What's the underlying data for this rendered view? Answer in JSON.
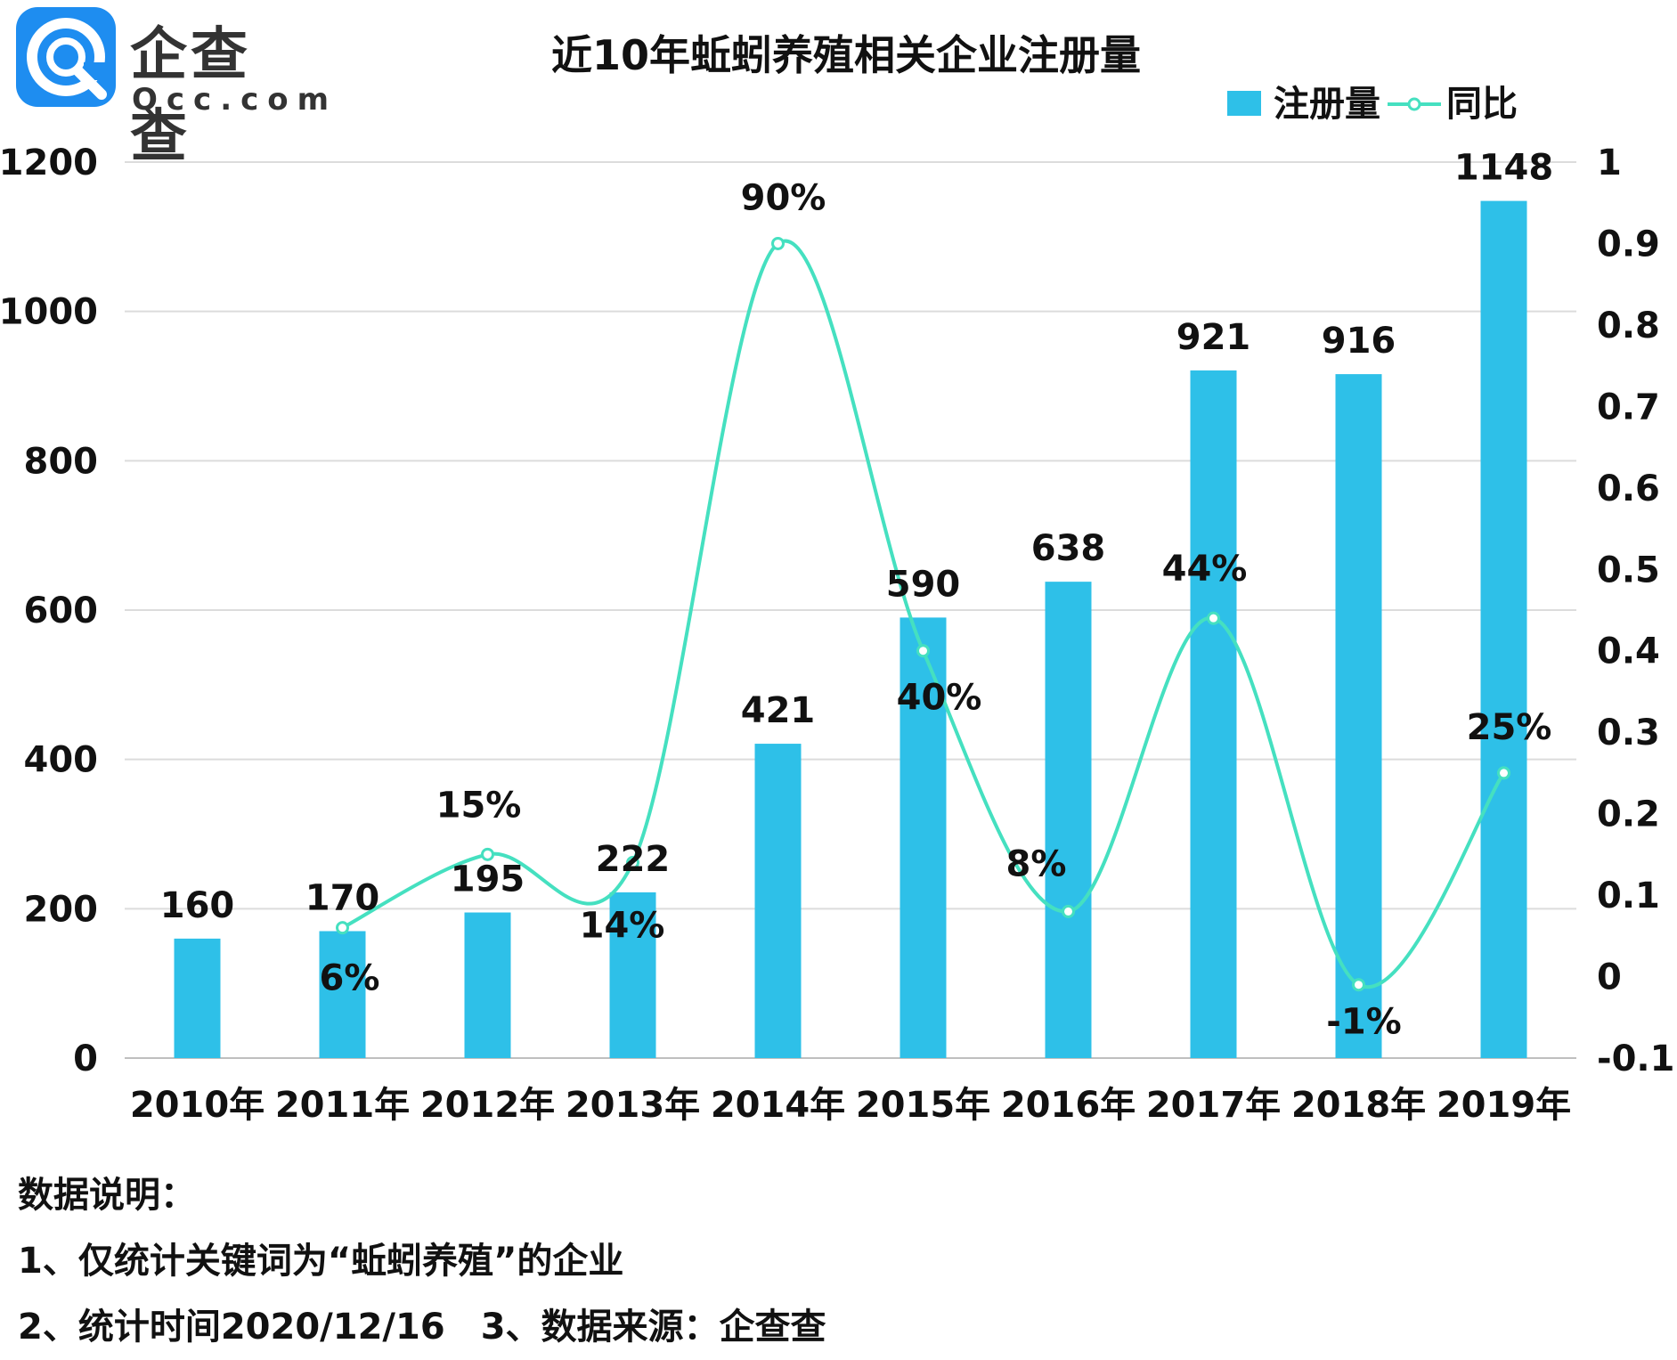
{
  "logo": {
    "name": "企查查",
    "domain": "Qcc.com"
  },
  "chart_data": {
    "type": "bar",
    "title": "近10年蚯蚓养殖相关企业注册量",
    "categories": [
      "2010年",
      "2011年",
      "2012年",
      "2013年",
      "2014年",
      "2015年",
      "2016年",
      "2017年",
      "2018年",
      "2019年"
    ],
    "series": [
      {
        "name": "注册量",
        "type": "bar",
        "axis": "left",
        "color": "#2ec0e8",
        "values": [
          160,
          170,
          195,
          222,
          421,
          590,
          638,
          921,
          916,
          1148
        ],
        "labels": [
          "160",
          "170",
          "195",
          "222",
          "421",
          "590",
          "638",
          "921",
          "916",
          "1148"
        ]
      },
      {
        "name": "同比",
        "type": "line",
        "axis": "right",
        "color": "#45e0c0",
        "smooth": true,
        "values": [
          null,
          0.06,
          0.15,
          0.14,
          0.9,
          0.4,
          0.08,
          0.44,
          -0.01,
          0.25
        ],
        "labels": [
          "",
          "6%",
          "15%",
          "14%",
          "90%",
          "40%",
          "8%",
          "44%",
          "-1%",
          "25%"
        ]
      }
    ],
    "yaxis_left": {
      "min": 0,
      "max": 1200,
      "ticks": [
        0,
        200,
        400,
        600,
        800,
        1000,
        1200
      ]
    },
    "yaxis_right": {
      "min": -0.1,
      "max": 1,
      "ticks": [
        "-0.1",
        "0",
        "0.1",
        "0.2",
        "0.3",
        "0.4",
        "0.5",
        "0.6",
        "0.7",
        "0.8",
        "0.9",
        "1"
      ]
    },
    "grid": true,
    "legend_position": "top-right"
  },
  "notes": {
    "heading": "数据说明：",
    "item1": "1、仅统计关键词为“蚯蚓养殖”的企业",
    "item2": "2、统计时间2020/12/16",
    "item3": "3、数据来源：企查查"
  }
}
